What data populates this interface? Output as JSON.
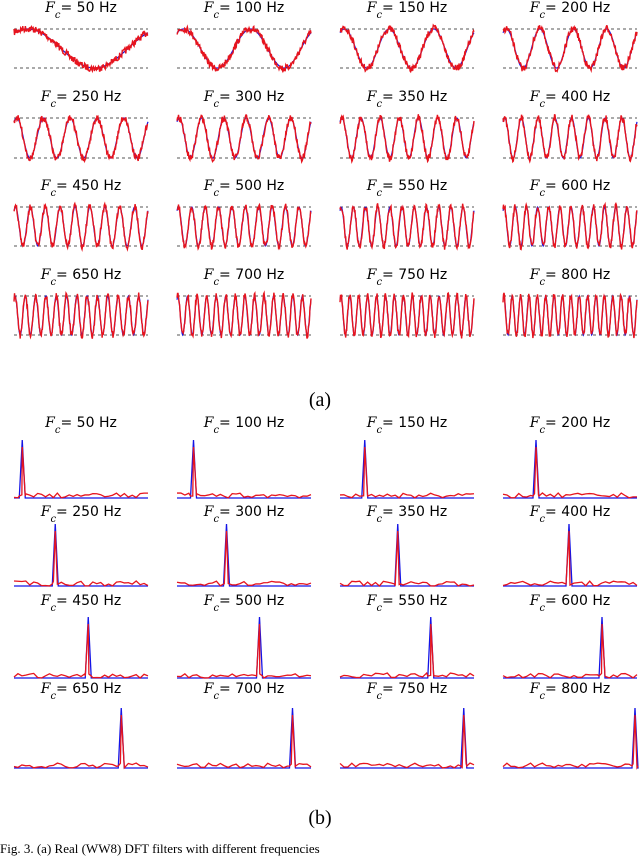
{
  "figure": {
    "part_a_label": "(a)",
    "part_b_label": "(b)",
    "caption_fragment": "Fig. 3.   (a)   Real (WW8) DFT    filters with different    frequencies"
  },
  "colors": {
    "reference": "#1414e6",
    "measured": "#e6141e",
    "guide": "#555555"
  },
  "chart_data": [
    {
      "type": "line",
      "part": "(a)",
      "description_of_series": "time-domain sinusoid per cutoff frequency; reference (blue) vs measured (red)",
      "panels": [
        {
          "title_prefix": "F",
          "title_sub": "c",
          "title_value": "= 50 Hz",
          "freq": 50
        },
        {
          "title_prefix": "F",
          "title_sub": "c",
          "title_value": "= 100 Hz",
          "freq": 100
        },
        {
          "title_prefix": "F",
          "title_sub": "c",
          "title_value": "= 150 Hz",
          "freq": 150
        },
        {
          "title_prefix": "F",
          "title_sub": "c",
          "title_value": "= 200 Hz",
          "freq": 200
        },
        {
          "title_prefix": "F",
          "title_sub": "c",
          "title_value": "= 250 Hz",
          "freq": 250
        },
        {
          "title_prefix": "F",
          "title_sub": "c",
          "title_value": "= 300 Hz",
          "freq": 300
        },
        {
          "title_prefix": "F",
          "title_sub": "c",
          "title_value": "= 350 Hz",
          "freq": 350
        },
        {
          "title_prefix": "F",
          "title_sub": "c",
          "title_value": "= 400 Hz",
          "freq": 400
        },
        {
          "title_prefix": "F",
          "title_sub": "c",
          "title_value": "= 450 Hz",
          "freq": 450
        },
        {
          "title_prefix": "F",
          "title_sub": "c",
          "title_value": "= 500 Hz",
          "freq": 500
        },
        {
          "title_prefix": "F",
          "title_sub": "c",
          "title_value": "= 550 Hz",
          "freq": 550
        },
        {
          "title_prefix": "F",
          "title_sub": "c",
          "title_value": "= 600 Hz",
          "freq": 600
        },
        {
          "title_prefix": "F",
          "title_sub": "c",
          "title_value": "= 650 Hz",
          "freq": 650
        },
        {
          "title_prefix": "F",
          "title_sub": "c",
          "title_value": "= 700 Hz",
          "freq": 700
        },
        {
          "title_prefix": "F",
          "title_sub": "c",
          "title_value": "= 750 Hz",
          "freq": 750
        },
        {
          "title_prefix": "F",
          "title_sub": "c",
          "title_value": "= 800 Hz",
          "freq": 800
        }
      ],
      "amplitude_guides": [
        -1,
        1
      ]
    },
    {
      "type": "line",
      "part": "(b)",
      "description_of_series": "magnitude spectrum per cutoff frequency; reference (blue) vs measured (red)",
      "panels": [
        {
          "title_prefix": "F",
          "title_sub": "c",
          "title_value": "= 50 Hz",
          "freq": 50
        },
        {
          "title_prefix": "F",
          "title_sub": "c",
          "title_value": "= 100 Hz",
          "freq": 100
        },
        {
          "title_prefix": "F",
          "title_sub": "c",
          "title_value": "= 150 Hz",
          "freq": 150
        },
        {
          "title_prefix": "F",
          "title_sub": "c",
          "title_value": "= 200 Hz",
          "freq": 200
        },
        {
          "title_prefix": "F",
          "title_sub": "c",
          "title_value": "= 250 Hz",
          "freq": 250
        },
        {
          "title_prefix": "F",
          "title_sub": "c",
          "title_value": "= 300 Hz",
          "freq": 300
        },
        {
          "title_prefix": "F",
          "title_sub": "c",
          "title_value": "= 350 Hz",
          "freq": 350
        },
        {
          "title_prefix": "F",
          "title_sub": "c",
          "title_value": "= 400 Hz",
          "freq": 400
        },
        {
          "title_prefix": "F",
          "title_sub": "c",
          "title_value": "= 450 Hz",
          "freq": 450
        },
        {
          "title_prefix": "F",
          "title_sub": "c",
          "title_value": "= 500 Hz",
          "freq": 500
        },
        {
          "title_prefix": "F",
          "title_sub": "c",
          "title_value": "= 550 Hz",
          "freq": 550
        },
        {
          "title_prefix": "F",
          "title_sub": "c",
          "title_value": "= 600 Hz",
          "freq": 600
        },
        {
          "title_prefix": "F",
          "title_sub": "c",
          "title_value": "= 650 Hz",
          "freq": 650
        },
        {
          "title_prefix": "F",
          "title_sub": "c",
          "title_value": "= 700 Hz",
          "freq": 700
        },
        {
          "title_prefix": "F",
          "title_sub": "c",
          "title_value": "= 750 Hz",
          "freq": 750
        },
        {
          "title_prefix": "F",
          "title_sub": "c",
          "title_value": "= 800 Hz",
          "freq": 800
        }
      ],
      "spectrum_range_hz": [
        0,
        800
      ]
    }
  ]
}
